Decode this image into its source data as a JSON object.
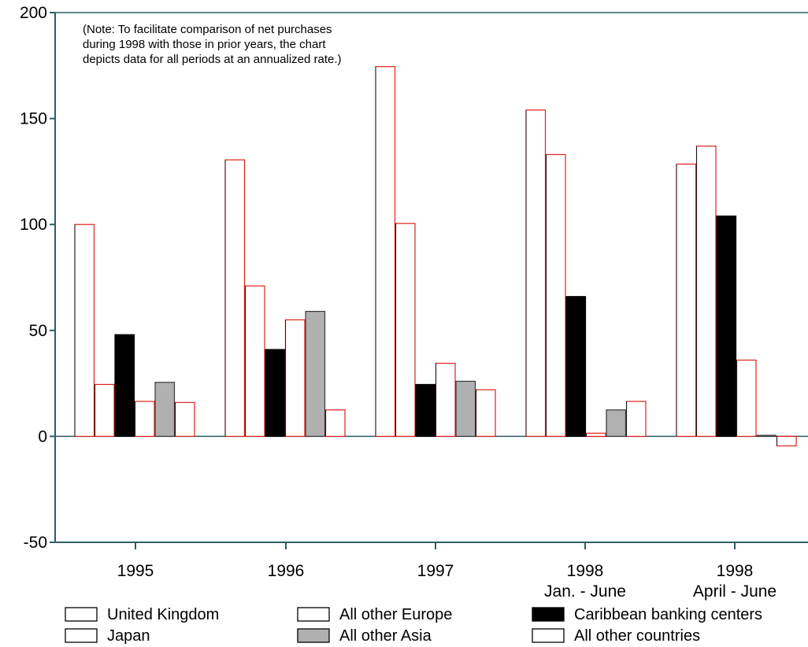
{
  "chart_data": {
    "type": "bar",
    "note": [
      "(Note: To facilitate comparison of net purchases",
      "during 1998 with those in prior years, the chart",
      "depicts data for all periods at an annualized rate.)"
    ],
    "categories": [
      "1995",
      "1996",
      "1997",
      "1998",
      "1998"
    ],
    "category_sublabels": [
      "",
      "",
      "",
      "Jan. - June",
      "April - June"
    ],
    "ylim": [
      -50,
      200
    ],
    "yticks": [
      "200",
      "150",
      "100",
      "50",
      "0",
      "-50"
    ],
    "series": [
      {
        "name": "United Kingdom",
        "values": [
          100,
          130.5,
          174.5,
          154,
          128.5
        ],
        "fill": "#ffffff",
        "stroke": "#e0201a"
      },
      {
        "name": "Japan",
        "values": [
          24.5,
          71,
          100.5,
          133,
          137
        ],
        "fill": "#ffffff",
        "stroke": "#e0201a"
      },
      {
        "name": "Caribbean banking centers",
        "values": [
          48,
          41,
          24.5,
          66,
          104
        ],
        "fill": "#000000",
        "stroke": "#000000"
      },
      {
        "name": "All other Europe",
        "values": [
          16.5,
          55,
          34.5,
          1.5,
          36
        ],
        "fill": "#ffffff",
        "stroke": "#e0201a"
      },
      {
        "name": "All other Asia",
        "values": [
          25.5,
          59,
          26,
          12.5,
          0.5
        ],
        "fill": "#b0b0b0",
        "stroke": "#3a3a3a"
      },
      {
        "name": "All other countries",
        "values": [
          16,
          12.5,
          22,
          16.5,
          -4.5
        ],
        "fill": "#ffffff",
        "stroke": "#e0201a"
      }
    ],
    "axis_color": "#2e5e64",
    "legend_order": [
      "United Kingdom",
      "All other Europe",
      "Caribbean banking centers",
      "Japan",
      "All other Asia",
      "All other countries"
    ]
  }
}
